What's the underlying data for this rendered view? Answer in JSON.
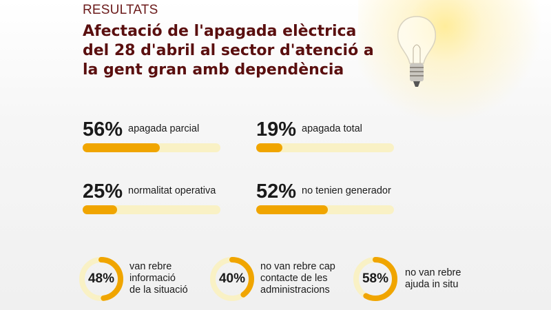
{
  "header": {
    "kicker": "RESULTATS",
    "title": "Afectació de l'apagada elèctrica del 28 d'abril al sector d'atenció a la gent gran amb dependència"
  },
  "colors": {
    "accent": "#f0a500",
    "track": "#f9f1c5",
    "title": "#5a0f0f"
  },
  "chart_data": [
    {
      "type": "bar",
      "orientation": "horizontal",
      "xlim": [
        0,
        100
      ],
      "bars": [
        {
          "value": 56,
          "label": "56%",
          "text": "apagada parcial"
        },
        {
          "value": 19,
          "label": "19%",
          "text": "apagada total"
        },
        {
          "value": 25,
          "label": "25%",
          "text": "normalitat operativa"
        },
        {
          "value": 52,
          "label": "52%",
          "text": "no tenien generador"
        }
      ]
    },
    {
      "type": "pie",
      "variant": "donut",
      "items": [
        {
          "value": 48,
          "label": "48%",
          "text": [
            "van rebre",
            "informació",
            "de la situació"
          ]
        },
        {
          "value": 40,
          "label": "40%",
          "text": [
            "no van rebre cap",
            "contacte de les",
            "administracions"
          ]
        },
        {
          "value": 58,
          "label": "58%",
          "text": [
            "no van rebre",
            "ajuda in situ"
          ]
        }
      ]
    }
  ]
}
